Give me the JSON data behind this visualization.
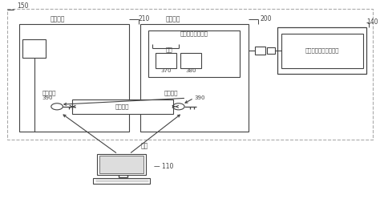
{
  "bg_color": "#ffffff",
  "border_color": "#444444",
  "text_color": "#444444",
  "labels": {
    "150": "150",
    "210": "210",
    "200": "200",
    "140": "140",
    "110": "110",
    "370": "370",
    "380": "380",
    "390a": "390",
    "390b": "390",
    "anquan": "安防单元",
    "kongzhi": "控制单元",
    "gonggong_prog": "公共密鉅生成程序",
    "bianliang": "变量",
    "gonggong_left": "公共密鉅",
    "gonggong_right": "公共密鉅",
    "xianghu": "相互认证",
    "xiazai": "下载",
    "gonggong_cmd": "公共密鉅生成命令启动"
  }
}
